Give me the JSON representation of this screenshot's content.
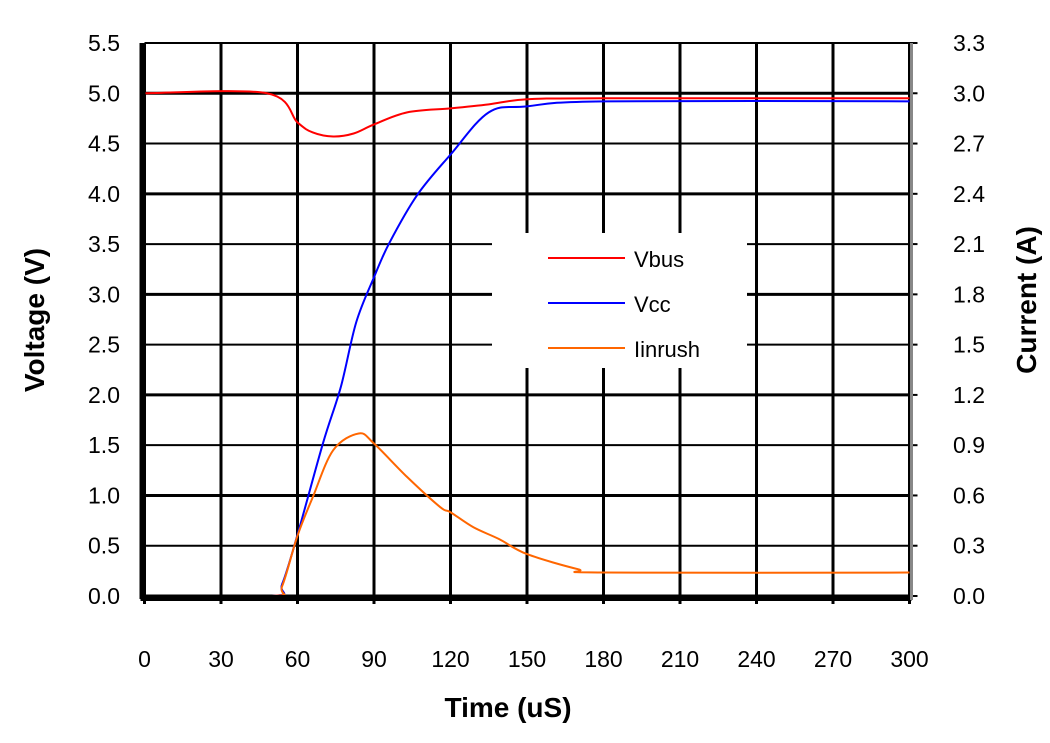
{
  "chart_data": {
    "type": "line",
    "xlabel": "Time (uS)",
    "ylabel": "Voltage (V)",
    "y2label": "Current (A)",
    "xlim": [
      0,
      300
    ],
    "ylim": [
      0,
      5.5
    ],
    "y2lim": [
      0,
      3.3
    ],
    "grid": true,
    "legend_placement": "center-right",
    "xticks": [
      "0",
      "30",
      "60",
      "90",
      "120",
      "150",
      "180",
      "210",
      "240",
      "270",
      "300"
    ],
    "yticks": [
      "0.0",
      "0.5",
      "1.0",
      "1.5",
      "2.0",
      "2.5",
      "3.0",
      "3.5",
      "4.0",
      "4.5",
      "5.0",
      "5.5"
    ],
    "y2ticks": [
      "0.0",
      "0.3",
      "0.6",
      "0.9",
      "1.2",
      "1.5",
      "1.8",
      "2.1",
      "2.4",
      "2.7",
      "3.0",
      "3.3"
    ],
    "series": [
      {
        "name": "Vbus",
        "axis": "left",
        "color": "#ff0000",
        "x": [
          0,
          48,
          60,
          66,
          74,
          82,
          90,
          103,
          120,
          135,
          150,
          180,
          300
        ],
        "y": [
          5.0,
          5.0,
          4.71,
          4.61,
          4.57,
          4.6,
          4.69,
          4.81,
          4.85,
          4.89,
          4.94,
          4.95,
          4.95
        ]
      },
      {
        "name": "Vcc",
        "axis": "left",
        "color": "#0000ff",
        "x": [
          0,
          50,
          54,
          60,
          70,
          77,
          83,
          90,
          96,
          107,
          120,
          135,
          150,
          180,
          300
        ],
        "y": [
          0,
          0,
          0.12,
          0.61,
          1.52,
          2.08,
          2.72,
          3.17,
          3.51,
          3.99,
          4.39,
          4.81,
          4.87,
          4.92,
          4.92
        ]
      },
      {
        "name": "Iinrush",
        "axis": "right",
        "color": "#ff6600",
        "x": [
          0,
          50,
          54,
          60,
          66,
          74,
          84,
          90,
          103,
          116,
          120,
          129,
          139,
          150,
          170,
          180,
          300
        ],
        "y": [
          0,
          0,
          0.06,
          0.36,
          0.59,
          0.87,
          0.97,
          0.91,
          0.71,
          0.53,
          0.5,
          0.41,
          0.34,
          0.25,
          0.16,
          0.14,
          0.14
        ]
      }
    ],
    "legend": [
      "Vbus",
      "Vcc",
      "Iinrush"
    ]
  }
}
